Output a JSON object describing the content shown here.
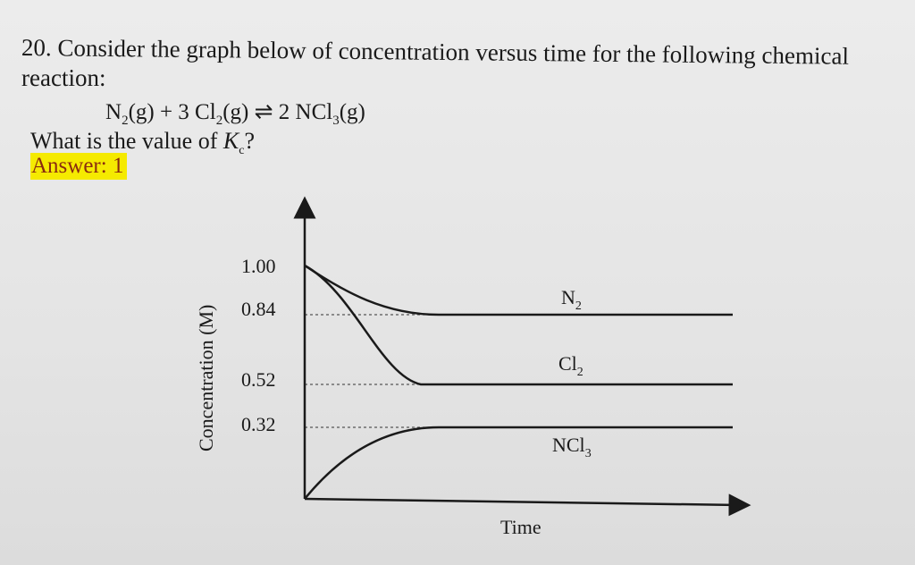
{
  "question": {
    "line1": "20. Consider the graph below of concentration versus time for the following chemical",
    "line2": "reaction:",
    "equation": {
      "n2": "N",
      "n2_sub": "2",
      "n2_state": "(g) + 3 Cl",
      "cl2_sub": "2",
      "cl2_state": "(g) ⇌ 2 NCl",
      "ncl3_sub": "3",
      "ncl3_state": "(g)"
    },
    "kc_prefix": "What is the value of ",
    "kc_symbol": "K",
    "kc_sub": "c",
    "kc_suffix": "?",
    "answer": "Answer: 1"
  },
  "chart_data": {
    "type": "line",
    "xlabel": "Time",
    "ylabel": "Concentration (M)",
    "y_ticks": [
      "1.00",
      "0.84",
      "0.52",
      "0.32"
    ],
    "ylim": [
      0,
      1.1
    ],
    "series": [
      {
        "name": "N2",
        "label": "N",
        "sub": "2",
        "start": 1.0,
        "end": 0.84
      },
      {
        "name": "Cl2",
        "label": "Cl",
        "sub": "2",
        "start": 1.0,
        "end": 0.52
      },
      {
        "name": "NCl3",
        "label": "NCl",
        "sub": "3",
        "start": 0.0,
        "end": 0.32
      }
    ],
    "colors": {
      "line": "#1a1a1a",
      "dashed": "#555555"
    }
  }
}
